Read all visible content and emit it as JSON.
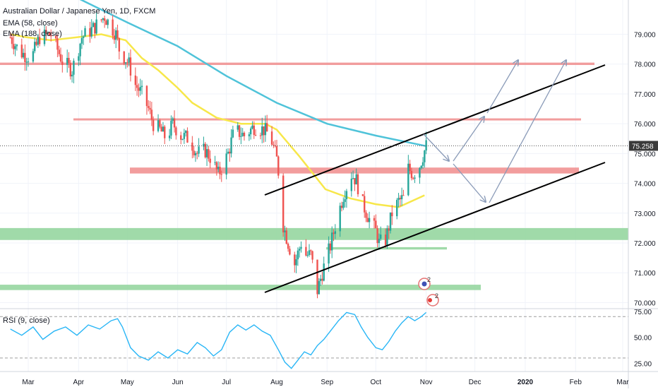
{
  "header": {
    "title": "Australian Dollar / Japanese Yen, 1D, FXCM",
    "ema_fast_label": "EMA (58, close)",
    "ema_slow_label": "EMA (188, close)",
    "rsi_label": "RSI (9, close)"
  },
  "colors": {
    "up": "#26a69a",
    "down": "#ef5350",
    "ema_fast": "#f7e74a",
    "ema_slow": "#4fc3d9",
    "resistance_zone": "#f08c8c",
    "support_zone": "#8fd49a",
    "channel": "#000000",
    "projection_arrow": "#8a9bb8",
    "rsi_line": "#29b6f6",
    "price_badge": "#3a3a3a",
    "grid": "#f0f3fa"
  },
  "chart_data": [
    {
      "type": "candlestick",
      "title": "Australian Dollar / Japanese Yen, 1D, FXCM",
      "y_ticks": [
        "70.000",
        "71.000",
        "72.000",
        "73.000",
        "74.000",
        "75.000",
        "76.000",
        "77.000",
        "78.000",
        "79.000"
      ],
      "ylim": [
        69.82,
        80.15
      ],
      "x_ticks": [
        "Mar",
        "Apr",
        "May",
        "Jun",
        "Jul",
        "Aug",
        "Sep",
        "Oct",
        "Nov",
        "Dec",
        "2020",
        "Feb",
        "Mar"
      ],
      "last_price": "75.258",
      "ohlc_anchors": [
        {
          "date": "Feb 18",
          "close": 78.9
        },
        {
          "date": "Feb 24",
          "close": 78.4
        },
        {
          "date": "Mar 3",
          "close": 78.2
        },
        {
          "date": "Mar 8",
          "close": 78.9
        },
        {
          "date": "Mar 15",
          "close": 79.0
        },
        {
          "date": "Mar 22",
          "close": 78.1
        },
        {
          "date": "Mar 28",
          "close": 77.8
        },
        {
          "date": "Apr 3",
          "close": 78.9
        },
        {
          "date": "Apr 10",
          "close": 79.2
        },
        {
          "date": "Apr 17",
          "close": 79.6
        },
        {
          "date": "Apr 24",
          "close": 79.0
        },
        {
          "date": "Apr 26",
          "close": 78.5
        },
        {
          "date": "May 2",
          "close": 78.0
        },
        {
          "date": "May 6",
          "close": 77.3
        },
        {
          "date": "May 10",
          "close": 77.0
        },
        {
          "date": "May 14",
          "close": 76.5
        },
        {
          "date": "May 17",
          "close": 76.0
        },
        {
          "date": "May 21",
          "close": 75.8
        },
        {
          "date": "May 25",
          "close": 75.5
        },
        {
          "date": "May 29",
          "close": 76.0
        },
        {
          "date": "Jun 3",
          "close": 75.6
        },
        {
          "date": "Jun 8",
          "close": 75.5
        },
        {
          "date": "Jun 13",
          "close": 75.0
        },
        {
          "date": "Jun 18",
          "close": 75.1
        },
        {
          "date": "Jun 22",
          "close": 74.8
        },
        {
          "date": "Jun 26",
          "close": 74.3
        },
        {
          "date": "Jun 29",
          "close": 74.6
        },
        {
          "date": "Jul 2",
          "close": 75.0
        },
        {
          "date": "Jul 6",
          "close": 75.8
        },
        {
          "date": "Jul 12",
          "close": 75.6
        },
        {
          "date": "Jul 18",
          "close": 75.9
        },
        {
          "date": "Jul 24",
          "close": 75.8
        },
        {
          "date": "Jul 28",
          "close": 75.6
        },
        {
          "date": "Aug 1",
          "close": 74.8
        },
        {
          "date": "Aug 3",
          "close": 74.0
        },
        {
          "date": "Aug 5",
          "close": 72.6
        },
        {
          "date": "Aug 8",
          "close": 72.0
        },
        {
          "date": "Aug 12",
          "close": 71.3
        },
        {
          "date": "Aug 16",
          "close": 72.0
        },
        {
          "date": "Aug 19",
          "close": 71.6
        },
        {
          "date": "Aug 22",
          "close": 71.6
        },
        {
          "date": "Aug 26",
          "close": 70.4
        },
        {
          "date": "Aug 30",
          "close": 71.2
        },
        {
          "date": "Sep 3",
          "close": 71.9
        },
        {
          "date": "Sep 7",
          "close": 72.8
        },
        {
          "date": "Sep 11",
          "close": 73.6
        },
        {
          "date": "Sep 16",
          "close": 74.3
        },
        {
          "date": "Sep 19",
          "close": 74.1
        },
        {
          "date": "Sep 23",
          "close": 73.3
        },
        {
          "date": "Sep 27",
          "close": 72.8
        },
        {
          "date": "Oct 1",
          "close": 72.4
        },
        {
          "date": "Oct 3",
          "close": 72.0
        },
        {
          "date": "Oct 7",
          "close": 72.1
        },
        {
          "date": "Oct 11",
          "close": 73.0
        },
        {
          "date": "Oct 15",
          "close": 73.4
        },
        {
          "date": "Oct 18",
          "close": 73.5
        },
        {
          "date": "Oct 21",
          "close": 74.5
        },
        {
          "date": "Oct 24",
          "close": 74.3
        },
        {
          "date": "Oct 28",
          "close": 74.6
        },
        {
          "date": "Nov 1",
          "close": 75.26
        }
      ],
      "ema_58": [
        {
          "date": "Feb 18",
          "value": 79.0
        },
        {
          "date": "Feb 28",
          "value": 78.9
        },
        {
          "date": "Mar 15",
          "value": 78.8
        },
        {
          "date": "Mar 31",
          "value": 78.9
        },
        {
          "date": "Apr 15",
          "value": 79.0
        },
        {
          "date": "Apr 30",
          "value": 78.8
        },
        {
          "date": "May 10",
          "value": 78.2
        },
        {
          "date": "May 20",
          "value": 77.8
        },
        {
          "date": "Jun 1",
          "value": 77.2
        },
        {
          "date": "Jun 10",
          "value": 76.7
        },
        {
          "date": "Jun 25",
          "value": 76.2
        },
        {
          "date": "Jul 10",
          "value": 76.0
        },
        {
          "date": "Jul 25",
          "value": 76.0
        },
        {
          "date": "Aug 1",
          "value": 75.8
        },
        {
          "date": "Aug 15",
          "value": 74.9
        },
        {
          "date": "Aug 31",
          "value": 73.8
        },
        {
          "date": "Sep 15",
          "value": 73.5
        },
        {
          "date": "Oct 1",
          "value": 73.3
        },
        {
          "date": "Oct 15",
          "value": 73.2
        },
        {
          "date": "Oct 31",
          "value": 73.6
        }
      ],
      "ema_188": [
        {
          "date": "Feb 18",
          "value": 81.0
        },
        {
          "date": "Mar 10",
          "value": 80.6
        },
        {
          "date": "Apr 1",
          "value": 80.2
        },
        {
          "date": "May 1",
          "value": 79.4
        },
        {
          "date": "Jun 1",
          "value": 78.6
        },
        {
          "date": "Jul 1",
          "value": 77.6
        },
        {
          "date": "Aug 1",
          "value": 76.7
        },
        {
          "date": "Sep 1",
          "value": 76.0
        },
        {
          "date": "Oct 1",
          "value": 75.6
        },
        {
          "date": "Nov 1",
          "value": 75.25
        }
      ],
      "zones": [
        {
          "kind": "resistance",
          "from": "Feb 18",
          "to": "Feb 20",
          "y_low": 77.97,
          "y_high": 78.05
        },
        {
          "kind": "resistance",
          "from": "May 8",
          "to": "Feb 14",
          "y_low": 76.12,
          "y_high": 76.18
        },
        {
          "kind": "resistance",
          "from": "Jun 8",
          "to": "Feb 16",
          "y_low": 74.33,
          "y_high": 74.53
        },
        {
          "kind": "support",
          "from": "Feb 18",
          "to": "Mar 31",
          "y_low": 72.1,
          "y_high": 72.5
        },
        {
          "kind": "support",
          "from": "Aug 20",
          "to": "Oct 15",
          "y_low": 71.78,
          "y_high": 71.86
        },
        {
          "kind": "support",
          "from": "Feb 18",
          "to": "Dec 1",
          "y_low": 70.42,
          "y_high": 70.6
        }
      ],
      "channel": [
        {
          "from": {
            "date": "Jul 28",
            "value": 73.85
          },
          "to": {
            "date": "Mar 1",
            "value": 77.62
          }
        },
        {
          "from": {
            "date": "Jul 28",
            "value": 70.25
          },
          "to": {
            "date": "Mar 1",
            "value": 74.45
          }
        }
      ],
      "projection_arrows": [
        {
          "from": {
            "date": "Nov 1",
            "value": 75.3
          },
          "to": {
            "date": "Nov 17",
            "value": 74.5
          }
        },
        {
          "from": {
            "date": "Nov 17",
            "value": 74.5
          },
          "to": {
            "date": "Dec 8",
            "value": 76.0
          }
        },
        {
          "from": {
            "date": "Nov 17",
            "value": 74.5
          },
          "to": {
            "date": "Dec 10",
            "value": 73.2
          }
        },
        {
          "from": {
            "date": "Dec 1",
            "value": 75.8
          },
          "to": {
            "date": "Dec 31",
            "value": 77.8
          }
        },
        {
          "from": {
            "date": "Dec 10",
            "value": 73.2
          },
          "to": {
            "date": "Feb 1",
            "value": 77.9
          }
        }
      ]
    },
    {
      "type": "line",
      "title": "RSI (9, close)",
      "y_ticks": [
        "25.00",
        "50.00",
        "75.00"
      ],
      "ylim": [
        17,
        77
      ],
      "reference_levels": [
        30,
        70
      ],
      "values": [
        {
          "date": "Feb 18",
          "value": 58
        },
        {
          "date": "Feb 25",
          "value": 52
        },
        {
          "date": "Mar 4",
          "value": 60
        },
        {
          "date": "Mar 10",
          "value": 48
        },
        {
          "date": "Mar 17",
          "value": 56
        },
        {
          "date": "Mar 24",
          "value": 60
        },
        {
          "date": "Mar 31",
          "value": 52
        },
        {
          "date": "Apr 7",
          "value": 62
        },
        {
          "date": "Apr 14",
          "value": 58
        },
        {
          "date": "Apr 21",
          "value": 66
        },
        {
          "date": "Apr 25",
          "value": 68
        },
        {
          "date": "Apr 28",
          "value": 60
        },
        {
          "date": "May 3",
          "value": 40
        },
        {
          "date": "May 8",
          "value": 32
        },
        {
          "date": "May 14",
          "value": 28
        },
        {
          "date": "May 20",
          "value": 36
        },
        {
          "date": "May 26",
          "value": 30
        },
        {
          "date": "Jun 1",
          "value": 38
        },
        {
          "date": "Jun 7",
          "value": 34
        },
        {
          "date": "Jun 13",
          "value": 45
        },
        {
          "date": "Jun 18",
          "value": 40
        },
        {
          "date": "Jun 23",
          "value": 32
        },
        {
          "date": "Jun 28",
          "value": 38
        },
        {
          "date": "Jul 3",
          "value": 55
        },
        {
          "date": "Jul 8",
          "value": 62
        },
        {
          "date": "Jul 13",
          "value": 57
        },
        {
          "date": "Jul 18",
          "value": 62
        },
        {
          "date": "Jul 23",
          "value": 56
        },
        {
          "date": "Jul 28",
          "value": 52
        },
        {
          "date": "Aug 2",
          "value": 38
        },
        {
          "date": "Aug 6",
          "value": 26
        },
        {
          "date": "Aug 10",
          "value": 20
        },
        {
          "date": "Aug 14",
          "value": 28
        },
        {
          "date": "Aug 18",
          "value": 36
        },
        {
          "date": "Aug 22",
          "value": 33
        },
        {
          "date": "Aug 26",
          "value": 42
        },
        {
          "date": "Aug 30",
          "value": 48
        },
        {
          "date": "Sep 3",
          "value": 56
        },
        {
          "date": "Sep 8",
          "value": 66
        },
        {
          "date": "Sep 13",
          "value": 74
        },
        {
          "date": "Sep 18",
          "value": 72
        },
        {
          "date": "Sep 22",
          "value": 60
        },
        {
          "date": "Sep 26",
          "value": 50
        },
        {
          "date": "Oct 1",
          "value": 40
        },
        {
          "date": "Oct 5",
          "value": 38
        },
        {
          "date": "Oct 9",
          "value": 46
        },
        {
          "date": "Oct 13",
          "value": 56
        },
        {
          "date": "Oct 17",
          "value": 64
        },
        {
          "date": "Oct 21",
          "value": 70
        },
        {
          "date": "Oct 25",
          "value": 66
        },
        {
          "date": "Oct 29",
          "value": 70
        },
        {
          "date": "Nov 1",
          "value": 74
        }
      ]
    }
  ]
}
